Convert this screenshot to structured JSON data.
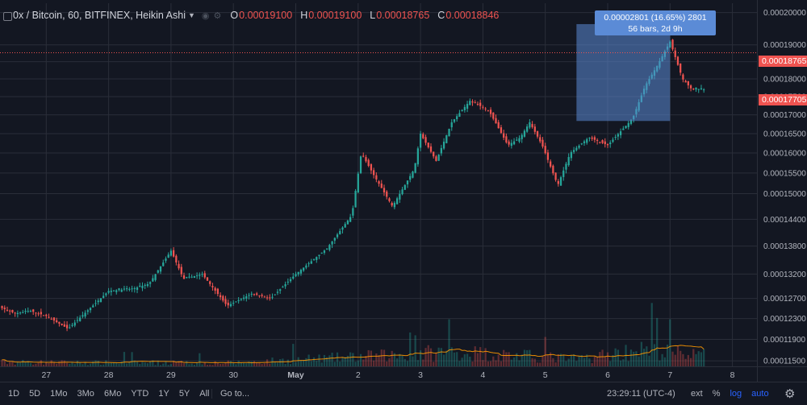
{
  "legend": {
    "symbol": "0x / Bitcoin, 60, BITFINEX, Heikin Ashi",
    "open_key": "O",
    "open": "0.00019100",
    "high_key": "H",
    "high": "0.00019100",
    "low_key": "L",
    "low": "0.00018765",
    "close_key": "C",
    "close": "0.00018846"
  },
  "measure": {
    "line1": "0.00002801 (16.65%) 2801",
    "line2": "56 bars, 2d 9h"
  },
  "price_tags": {
    "last": "0.00018765",
    "current": "0.00017705"
  },
  "bottom_bar": {
    "ranges": [
      "1D",
      "5D",
      "1Mo",
      "3Mo",
      "6Mo",
      "YTD",
      "1Y",
      "5Y",
      "All"
    ],
    "goto": "Go to...",
    "clock": "23:29:11 (UTC-4)",
    "ext": "ext",
    "percent": "%",
    "log": "log",
    "auto": "auto"
  },
  "colors": {
    "background": "#131722",
    "grid": "#2a2e39",
    "up": "#26a69a",
    "down": "#ef5350",
    "volume_up": "#26a69a",
    "volume_down": "#ef5350",
    "volume_ma": "#ff9800",
    "measure_fill": "#5b8bd6",
    "last_line": "#ef5350"
  },
  "chart_data": {
    "type": "candlestick",
    "style": "Heikin Ashi",
    "scale": "log",
    "grid": true,
    "ylim": [
      0.000114,
      0.000203
    ],
    "y_ticks": [
      "0.00020000",
      "0.00019000",
      "0.00018500",
      "0.00018000",
      "0.00017500",
      "0.00017000",
      "0.00016500",
      "0.00016000",
      "0.00015500",
      "0.00015000",
      "0.00014400",
      "0.00013800",
      "0.00013200",
      "0.00012700",
      "0.00012300",
      "0.00011900",
      "0.00011500"
    ],
    "x_ticks": [
      "27",
      "28",
      "29",
      "30",
      "May",
      "2",
      "3",
      "4",
      "5",
      "6",
      "7",
      "8"
    ],
    "price_keypoints": [
      {
        "x": 0.0,
        "y": 0.0001265
      },
      {
        "x": 0.5,
        "y": 0.000124
      },
      {
        "x": 0.75,
        "y": 0.0001245
      },
      {
        "x": 1.0,
        "y": 0.0001235
      },
      {
        "x": 1.35,
        "y": 0.000121
      },
      {
        "x": 1.7,
        "y": 0.000125
      },
      {
        "x": 2.0,
        "y": 0.0001285
      },
      {
        "x": 2.4,
        "y": 0.000129
      },
      {
        "x": 2.65,
        "y": 0.00013
      },
      {
        "x": 3.0,
        "y": 0.000137
      },
      {
        "x": 3.2,
        "y": 0.000131
      },
      {
        "x": 3.5,
        "y": 0.000132
      },
      {
        "x": 3.9,
        "y": 0.0001255
      },
      {
        "x": 4.3,
        "y": 0.000128
      },
      {
        "x": 4.6,
        "y": 0.000127
      },
      {
        "x": 5.0,
        "y": 0.000132
      },
      {
        "x": 5.5,
        "y": 0.0001375
      },
      {
        "x": 5.9,
        "y": 0.000145
      },
      {
        "x": 6.05,
        "y": 0.00016
      },
      {
        "x": 6.25,
        "y": 0.0001545
      },
      {
        "x": 6.55,
        "y": 0.000147
      },
      {
        "x": 6.9,
        "y": 0.000156
      },
      {
        "x": 7.0,
        "y": 0.000165
      },
      {
        "x": 7.25,
        "y": 0.000158
      },
      {
        "x": 7.5,
        "y": 0.000168
      },
      {
        "x": 7.8,
        "y": 0.000174
      },
      {
        "x": 8.1,
        "y": 0.000171
      },
      {
        "x": 8.4,
        "y": 0.000162
      },
      {
        "x": 8.6,
        "y": 0.000164
      },
      {
        "x": 8.75,
        "y": 0.000168
      },
      {
        "x": 8.95,
        "y": 0.000162
      },
      {
        "x": 9.2,
        "y": 0.000152
      },
      {
        "x": 9.4,
        "y": 0.00016
      },
      {
        "x": 9.7,
        "y": 0.000164
      },
      {
        "x": 10.0,
        "y": 0.000162
      },
      {
        "x": 10.4,
        "y": 0.000169
      },
      {
        "x": 10.6,
        "y": 0.000178
      },
      {
        "x": 10.8,
        "y": 0.000184
      },
      {
        "x": 11.0,
        "y": 0.000191
      },
      {
        "x": 11.2,
        "y": 0.00018
      },
      {
        "x": 11.35,
        "y": 0.000177
      },
      {
        "x": 11.55,
        "y": 0.000177
      }
    ],
    "volume_keypoints": [
      {
        "x": 0.0,
        "v": 0.12
      },
      {
        "x": 2.0,
        "v": 0.1
      },
      {
        "x": 4.0,
        "v": 0.1
      },
      {
        "x": 5.5,
        "v": 0.22
      },
      {
        "x": 6.5,
        "v": 0.3
      },
      {
        "x": 7.5,
        "v": 0.4
      },
      {
        "x": 8.5,
        "v": 0.3
      },
      {
        "x": 9.5,
        "v": 0.2
      },
      {
        "x": 10.5,
        "v": 0.45
      },
      {
        "x": 11.5,
        "v": 0.3
      }
    ],
    "measure_range": {
      "from_x": 9.5,
      "to_x": 11.0,
      "from_y": 0.00016836,
      "to_y": 0.00019637
    }
  }
}
